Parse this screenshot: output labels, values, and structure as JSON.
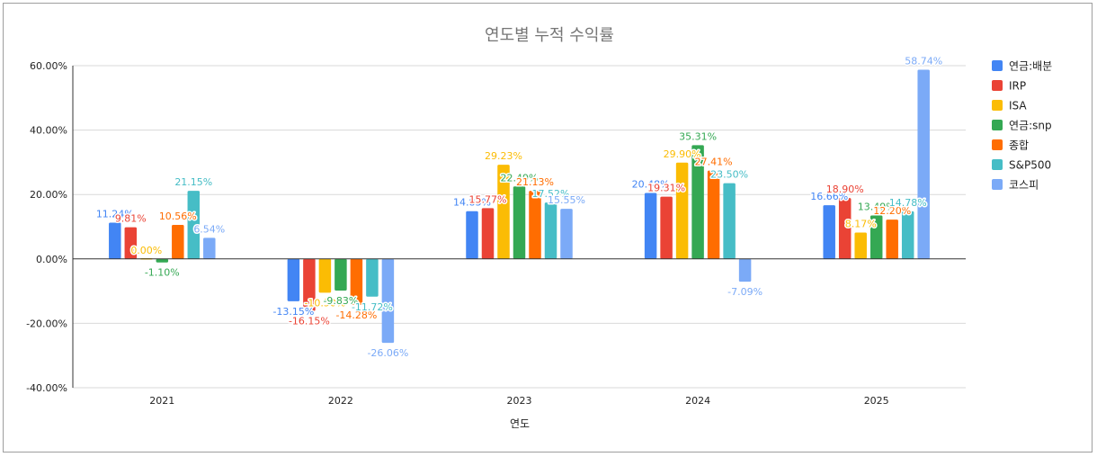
{
  "chart_data": {
    "type": "bar",
    "title": "연도별 누적 수익률",
    "xlabel": "연도",
    "ylabel": "",
    "categories": [
      "2021",
      "2022",
      "2023",
      "2024",
      "2025"
    ],
    "ylim": [
      -40,
      60
    ],
    "yticks": [
      -40,
      -20,
      0,
      20,
      40,
      60
    ],
    "ytick_labels": [
      "-40.00%",
      "-20.00%",
      "0.00%",
      "20.00%",
      "40.00%",
      "60.00%"
    ],
    "legend_position": "right",
    "series": [
      {
        "name": "연금:배분",
        "color": "#4285f4",
        "values": [
          11.24,
          -13.15,
          14.83,
          20.48,
          16.66
        ],
        "labels": [
          "11.24%",
          "-13.15%",
          "14.83%",
          "20.48%",
          "16.66%"
        ]
      },
      {
        "name": "IRP",
        "color": "#ea4335",
        "values": [
          9.81,
          -16.15,
          15.77,
          19.31,
          18.9
        ],
        "labels": [
          "9.81%",
          "-16.15%",
          "15.77%",
          "19.31%",
          "18.90%"
        ]
      },
      {
        "name": "ISA",
        "color": "#fbbc04",
        "values": [
          0.0,
          -10.5,
          29.23,
          29.9,
          8.17
        ],
        "labels": [
          "0.00%",
          "-10.50%",
          "29.23%",
          "29.90%",
          "8.17%"
        ]
      },
      {
        "name": "연금:snp",
        "color": "#34a853",
        "values": [
          -1.1,
          -9.83,
          22.49,
          35.31,
          13.49
        ],
        "labels": [
          "-1.10%",
          "-9.83%",
          "22.49%",
          "35.31%",
          "13.49%"
        ]
      },
      {
        "name": "종합",
        "color": "#ff6d01",
        "values": [
          10.56,
          -14.28,
          21.13,
          27.41,
          12.2
        ],
        "labels": [
          "10.56%",
          "-14.28%",
          "21.13%",
          "27.41%",
          "12.20%"
        ]
      },
      {
        "name": "S&P500",
        "color": "#46bdc6",
        "values": [
          21.15,
          -11.72,
          17.52,
          23.5,
          14.78
        ],
        "labels": [
          "21.15%",
          "-11.72%",
          "17.52%",
          "23.50%",
          "14.78%"
        ]
      },
      {
        "name": "코스피",
        "color": "#7baaf7",
        "values": [
          6.54,
          -26.06,
          15.55,
          -7.09,
          58.74
        ],
        "labels": [
          "6.54%",
          "-26.06%",
          "15.55%",
          "-7.09%",
          "58.74%"
        ]
      }
    ]
  }
}
